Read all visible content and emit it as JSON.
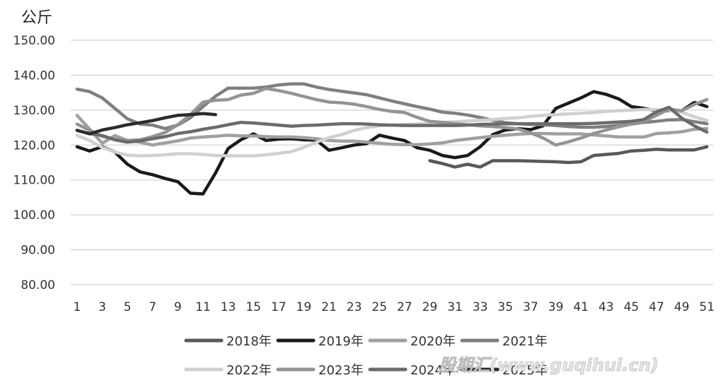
{
  "chart_data": {
    "type": "line",
    "ylabel": "公斤",
    "ylim": [
      80,
      150
    ],
    "yticks": [
      80,
      90,
      100,
      110,
      120,
      130,
      140,
      150
    ],
    "ytick_labels": [
      "80.00",
      "90.00",
      "100.00",
      "110.00",
      "120.00",
      "130.00",
      "140.00",
      "150.00"
    ],
    "xlim": [
      1,
      51
    ],
    "xticks": [
      1,
      3,
      5,
      7,
      9,
      11,
      13,
      15,
      17,
      19,
      21,
      23,
      25,
      27,
      29,
      31,
      33,
      35,
      37,
      39,
      41,
      43,
      45,
      47,
      49,
      51
    ],
    "grid": true,
    "legend_position": "bottom",
    "series": [
      {
        "name": "2018年",
        "color": "#595959",
        "x_start": 29,
        "values": [
          115.5,
          114.7,
          113.7,
          114.5,
          113.7,
          115.5,
          115.5,
          115.5,
          115.4,
          115.3,
          115.2,
          115,
          115.2,
          117,
          117.3,
          117.6,
          118.3,
          118.5,
          118.8,
          118.6,
          118.6,
          118.6,
          119.5
        ]
      },
      {
        "name": "2019年",
        "color": "#1a1a1a",
        "x_start": 1,
        "values": [
          119.5,
          118.3,
          119.5,
          118,
          114.5,
          112.3,
          111.5,
          110.4,
          109.5,
          106.2,
          106,
          112,
          119,
          121.5,
          123.2,
          121.3,
          121.7,
          121.8,
          121.5,
          121.4,
          118.5,
          119.2,
          120,
          120.4,
          122.8,
          122,
          121.3,
          119.2,
          118.5,
          117,
          116.4,
          117,
          119.5,
          123,
          124.3,
          124.7,
          124.4,
          125.5,
          130.5,
          132,
          133.5,
          135.3,
          134.5,
          133.2,
          131,
          130.5,
          129.8,
          129.8,
          129.8,
          132.2,
          131
        ]
      },
      {
        "name": "2020年",
        "color": "#a0a0a0",
        "x_start": 1,
        "values": [
          128.5,
          124.5,
          120.5,
          122.7,
          121.3,
          120.8,
          120,
          120.6,
          121.2,
          122,
          122.3,
          122.5,
          122.8,
          122.6,
          122.6,
          122.4,
          122.3,
          122.3,
          122.1,
          121.8,
          121.3,
          121.1,
          121.1,
          120.8,
          120.5,
          120.2,
          120.1,
          120.1,
          120.3,
          120.6,
          121.3,
          121.7,
          122.1,
          122.5,
          122.8,
          123.1,
          123.3,
          123.3,
          123.2,
          123.2,
          123.2,
          122.9,
          122.6,
          122.3,
          122.3,
          122.3,
          123.3,
          123.5,
          123.8,
          124.5,
          124.7
        ]
      },
      {
        "name": "2021年",
        "color": "#7f7f7f",
        "x_start": 1,
        "values": [
          136,
          135.3,
          133.5,
          130.5,
          127.5,
          126,
          125.7,
          124.7,
          125.7,
          127.8,
          131,
          134,
          136.3,
          136.3,
          136.3,
          136.6,
          137.2,
          137.5,
          137.5,
          136.6,
          135.9,
          135.4,
          134.9,
          134.4,
          133.5,
          132.6,
          131.8,
          131,
          130.3,
          129.4,
          129.1,
          128.6,
          127.9,
          127.1,
          126.4,
          126.1,
          125.9,
          125.8,
          125.6,
          125.3,
          125.1,
          125.1,
          125.3,
          125.6,
          126,
          126.5,
          126.8,
          127.2,
          127.3,
          126.7,
          126.1
        ]
      },
      {
        "name": "2022年",
        "color": "#d0d0d0",
        "x_start": 1,
        "values": [
          122.7,
          121.3,
          119.3,
          118,
          117.1,
          116.9,
          117,
          117.2,
          117.5,
          117.5,
          117.3,
          117,
          116.9,
          116.9,
          116.9,
          117.2,
          117.6,
          118.1,
          119.3,
          120.8,
          122.1,
          123,
          124.2,
          125,
          125.5,
          125.7,
          125.9,
          126,
          126.2,
          126.5,
          126.7,
          126.9,
          127.1,
          127.3,
          127.6,
          127.8,
          128.2,
          128.5,
          128.7,
          128.9,
          129.1,
          129.3,
          129.6,
          129.8,
          130,
          130.2,
          130.1,
          129.9,
          129.4,
          128.1,
          127
        ]
      },
      {
        "name": "2023年",
        "color": "#949494",
        "x_start": 1,
        "values": [
          126,
          124.2,
          122.5,
          121.6,
          121.3,
          121.5,
          122.4,
          123.6,
          125.8,
          128.7,
          132.3,
          132.8,
          133,
          134.3,
          134.8,
          136.2,
          135.6,
          134.8,
          133.9,
          133,
          132.3,
          132.1,
          131.7,
          131,
          130.2,
          129.6,
          129.3,
          127.9,
          126.8,
          126.5,
          126.1,
          125.8,
          125.5,
          125.3,
          125,
          124.6,
          123.5,
          122,
          120,
          120.9,
          122,
          123.3,
          124.3,
          125.2,
          126,
          126.8,
          128.5,
          130.3,
          129.8,
          131.6,
          133
        ]
      },
      {
        "name": "2024年",
        "color": "#6b6b6b",
        "x_start": 1,
        "values": [
          124.2,
          123.3,
          122.7,
          121.5,
          120.8,
          121.2,
          121.8,
          122.4,
          123.3,
          123.8,
          124.5,
          125.1,
          125.8,
          126.5,
          126.3,
          126,
          125.7,
          125.4,
          125.6,
          125.7,
          125.9,
          126.1,
          126.1,
          126,
          125.8,
          125.7,
          125.6,
          125.6,
          125.6,
          125.6,
          125.6,
          125.7,
          125.9,
          126,
          126.1,
          126.1,
          126.1,
          126.1,
          126.1,
          126.1,
          126.1,
          126.2,
          126.4,
          126.6,
          126.8,
          127.3,
          129.5,
          130.8,
          127.7,
          125.5,
          123.7
        ]
      },
      {
        "name": "2025年",
        "color": "#2b2b2b",
        "x_start": 1,
        "values": [
          124.2,
          123.2,
          124.3,
          125,
          125.8,
          126.4,
          127,
          127.8,
          128.5,
          128.7,
          129,
          128.7
        ]
      }
    ]
  },
  "watermark": "股期汇(www.guqihui.cn)"
}
